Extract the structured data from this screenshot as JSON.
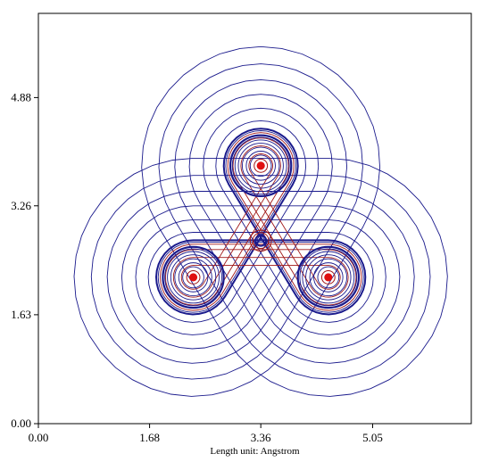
{
  "chart_data": {
    "type": "contour",
    "xlabel": "Length unit: Angstrom",
    "ylabel": "",
    "xlim": [
      0.0,
      6.54
    ],
    "ylim": [
      0.0,
      6.14
    ],
    "x_ticks": [
      "0.00",
      "1.68",
      "3.36",
      "5.05"
    ],
    "x_tick_values": [
      0.0,
      1.68,
      3.36,
      5.05
    ],
    "y_ticks": [
      "0.00",
      "1.63",
      "3.26",
      "4.88"
    ],
    "y_tick_values": [
      0.0,
      1.63,
      3.26,
      4.88
    ],
    "grid": false,
    "contour_colors": {
      "outer_isolines": "#1a1a8c",
      "inner_isolines": "#a01818",
      "core_peaks": "#e01010"
    },
    "contour_center": [
      3.36,
      2.74
    ],
    "outer_contour_offsets": [
      0.06,
      0.25,
      0.46,
      0.68,
      0.92,
      1.18
    ],
    "atom_centers": [
      {
        "x": 3.36,
        "y": 3.86
      },
      {
        "x": 2.34,
        "y": 2.19
      },
      {
        "x": 4.38,
        "y": 2.19
      }
    ],
    "atom_ring_radii": [
      0.16,
      0.22,
      0.28,
      0.34,
      0.39,
      0.43,
      0.46
    ],
    "center_ring_radii": [
      0.08,
      0.12,
      0.16
    ]
  }
}
